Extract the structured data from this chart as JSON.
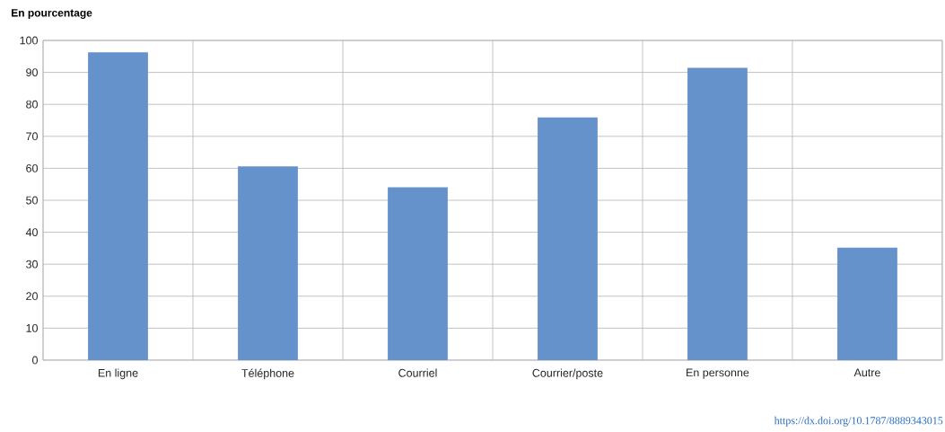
{
  "chart_data": {
    "type": "bar",
    "title": "En pourcentage",
    "categories": [
      "En ligne",
      "Téléphone",
      "Courriel",
      "Courrier/poste",
      "En personne",
      "Autre"
    ],
    "values": [
      96.3,
      60.6,
      54.1,
      75.9,
      91.4,
      35.2
    ],
    "color": "#6692cb",
    "ylim": [
      0,
      100
    ],
    "yticks": [
      0,
      10,
      20,
      30,
      40,
      50,
      60,
      70,
      80,
      90,
      100
    ],
    "grid": true,
    "annotations": [
      "https://dx.doi.org/10.1787/8889343015"
    ]
  }
}
